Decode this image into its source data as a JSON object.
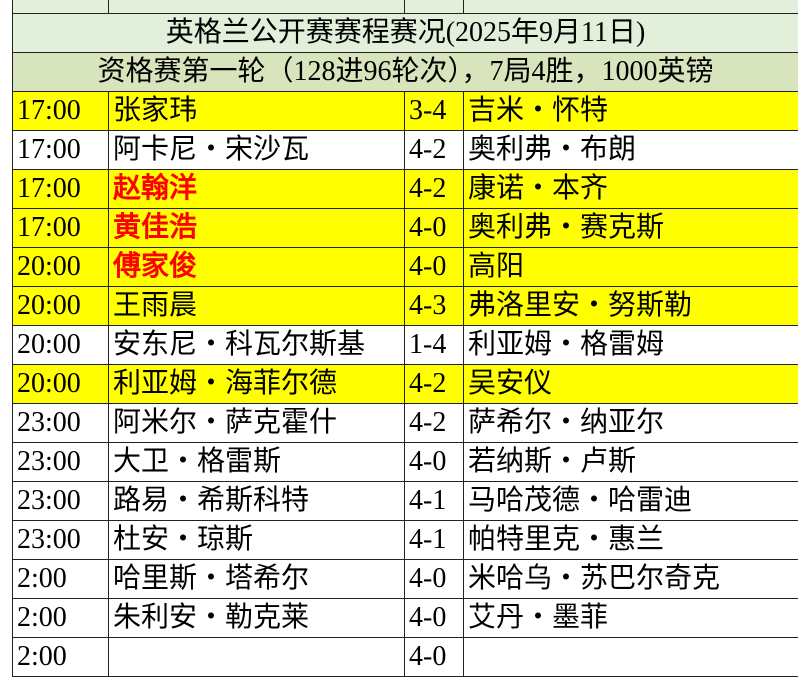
{
  "table": {
    "title": "英格兰公开赛赛程赛况(2025年9月11日)",
    "subtitle": "资格赛第一轮（128进96轮次），7局4胜，1000英镑",
    "rows": [
      {
        "cells": [
          "17:00",
          "张家玮",
          "3-4",
          "吉米・怀特"
        ],
        "fill": "#ffff00"
      },
      {
        "cells": [
          "17:00",
          "阿卡尼・宋沙瓦",
          "4-2",
          "奥利弗・布朗"
        ],
        "fill": "#ffffff"
      },
      {
        "cells": [
          "17:00",
          "赵翰洋",
          "4-2",
          "康诺・本齐"
        ],
        "fill": "#ffff00",
        "name_color": "#ff0000"
      },
      {
        "cells": [
          "17:00",
          "黄佳浩",
          "4-0",
          "奥利弗・赛克斯"
        ],
        "fill": "#ffff00",
        "name_color": "#ff0000"
      },
      {
        "cells": [
          "20:00",
          "傅家俊",
          "4-0",
          "高阳"
        ],
        "fill": "#ffff00",
        "name_color": "#ff0000"
      },
      {
        "cells": [
          "20:00",
          "王雨晨",
          "4-3",
          "弗洛里安・努斯勒"
        ],
        "fill": "#ffff00"
      },
      {
        "cells": [
          "20:00",
          "安东尼・科瓦尔斯基",
          "1-4",
          "利亚姆・格雷姆"
        ],
        "fill": "#ffffff"
      },
      {
        "cells": [
          "20:00",
          "利亚姆・海菲尔德",
          "4-2",
          "吴安仪"
        ],
        "fill": "#ffff00"
      },
      {
        "cells": [
          "23:00",
          "阿米尔・萨克霍什",
          "4-2",
          "萨希尔・纳亚尔"
        ],
        "fill": "#ffffff"
      },
      {
        "cells": [
          "23:00",
          "大卫・格雷斯",
          "4-0",
          "若纳斯・卢斯"
        ],
        "fill": "#ffffff"
      },
      {
        "cells": [
          "23:00",
          "路易・希斯科特",
          "4-1",
          "马哈茂德・哈雷迪"
        ],
        "fill": "#ffffff"
      },
      {
        "cells": [
          "23:00",
          "杜安・琼斯",
          "4-1",
          "帕特里克・惠兰"
        ],
        "fill": "#ffffff"
      },
      {
        "cells": [
          "2:00",
          "哈里斯・塔希尔",
          "4-0",
          "米哈乌・苏巴尔奇克"
        ],
        "fill": "#ffffff"
      },
      {
        "cells": [
          "2:00",
          "朱利安・勒克莱",
          "4-0",
          "艾丹・墨菲"
        ],
        "fill": "#ffffff"
      },
      {
        "cells": [
          "2:00",
          "",
          "4-0",
          ""
        ],
        "fill": "#ffffff"
      }
    ]
  }
}
